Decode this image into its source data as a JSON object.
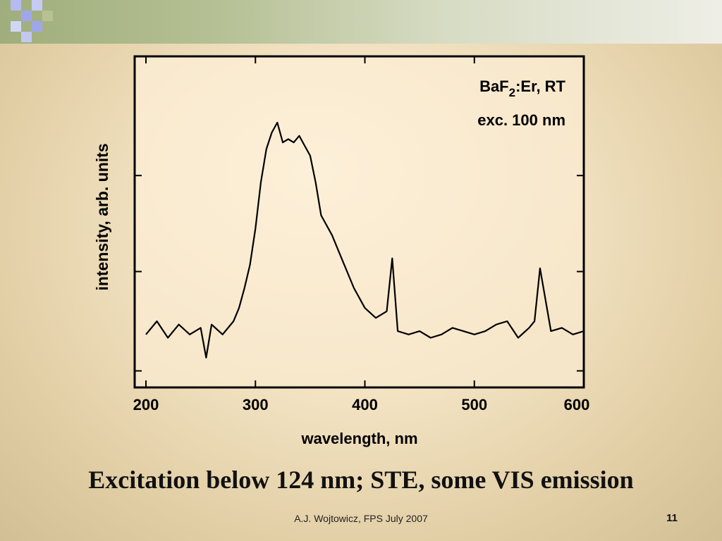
{
  "slide": {
    "title": "Excitation below 124 nm; STE, some VIS emission",
    "footer": "A.J. Wojtowicz, FPS July 2007",
    "page_number": "11"
  },
  "colors": {
    "accent_bar_start": "#9fae7c",
    "background": "#f3e3c3",
    "deco_blue": "#9fa7ea",
    "deco_green": "#a7b680"
  },
  "chart_data": {
    "type": "line",
    "title": "",
    "annotation": {
      "compound_base": "BaF",
      "compound_subscript": "2",
      "compound_rest": ":Er, RT",
      "excitation": "exc. 100 nm"
    },
    "xlabel": "wavelength, nm",
    "ylabel": "intensity, arb. units",
    "xlim": [
      200,
      600
    ],
    "ylim": [
      0,
      1
    ],
    "xticks": [
      200,
      300,
      400,
      500,
      600
    ],
    "xtick_labels": [
      "200",
      "300",
      "400",
      "500",
      "600"
    ],
    "yticks": [
      0.05,
      0.35,
      0.64
    ],
    "grid": false,
    "legend": "none",
    "series": [
      {
        "x": [
          200,
          210,
          220,
          230,
          240,
          250,
          255,
          260,
          270,
          280,
          285,
          290,
          295,
          300,
          305,
          310,
          315,
          320,
          325,
          330,
          335,
          340,
          345,
          350,
          355,
          360,
          370,
          380,
          390,
          400,
          410,
          420,
          425,
          430,
          440,
          450,
          460,
          470,
          480,
          490,
          500,
          510,
          520,
          530,
          540,
          550,
          555,
          560,
          570,
          580,
          590,
          600
        ],
        "y": [
          0.16,
          0.2,
          0.15,
          0.19,
          0.16,
          0.18,
          0.09,
          0.19,
          0.16,
          0.2,
          0.24,
          0.3,
          0.37,
          0.48,
          0.62,
          0.72,
          0.77,
          0.8,
          0.74,
          0.75,
          0.74,
          0.76,
          0.73,
          0.7,
          0.62,
          0.52,
          0.46,
          0.38,
          0.3,
          0.24,
          0.21,
          0.23,
          0.39,
          0.17,
          0.16,
          0.17,
          0.15,
          0.16,
          0.18,
          0.17,
          0.16,
          0.17,
          0.19,
          0.2,
          0.15,
          0.18,
          0.2,
          0.36,
          0.17,
          0.18,
          0.16,
          0.17
        ]
      }
    ]
  }
}
